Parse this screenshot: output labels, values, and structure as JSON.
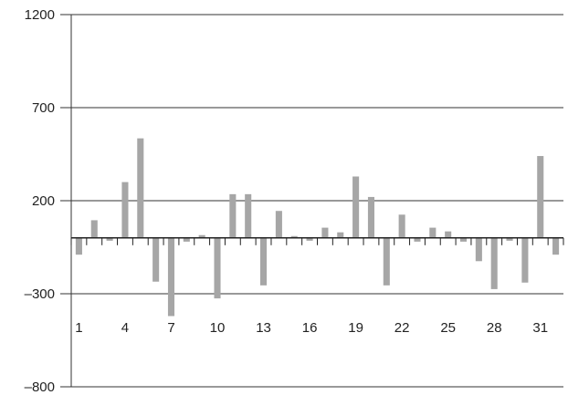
{
  "chart_data": {
    "type": "bar",
    "title": "",
    "xlabel": "",
    "ylabel": "",
    "ylim": [
      -800,
      1200
    ],
    "yticks": [
      1200,
      700,
      200,
      -300,
      -800
    ],
    "ytick_labels": [
      "1200",
      "700",
      "200",
      "–300",
      "–800"
    ],
    "grid": "horizontal",
    "legend": "none",
    "categories": [
      1,
      2,
      3,
      4,
      5,
      6,
      7,
      8,
      9,
      10,
      11,
      12,
      13,
      14,
      15,
      16,
      17,
      18,
      19,
      20,
      21,
      22,
      23,
      24,
      25,
      26,
      27,
      28,
      29,
      30,
      31,
      32
    ],
    "xtick_labels": [
      {
        "category": 1,
        "label": "1"
      },
      {
        "category": 4,
        "label": "4"
      },
      {
        "category": 7,
        "label": "7"
      },
      {
        "category": 10,
        "label": "10"
      },
      {
        "category": 13,
        "label": "13"
      },
      {
        "category": 16,
        "label": "16"
      },
      {
        "category": 19,
        "label": "19"
      },
      {
        "category": 22,
        "label": "22"
      },
      {
        "category": 25,
        "label": "25"
      },
      {
        "category": 28,
        "label": "28"
      },
      {
        "category": 31,
        "label": "31"
      }
    ],
    "series": [
      {
        "color": "#a6a6a6",
        "values": [
          -90,
          95,
          -15,
          300,
          535,
          -235,
          -420,
          -20,
          15,
          -325,
          235,
          235,
          -255,
          145,
          10,
          -15,
          55,
          30,
          330,
          220,
          -255,
          125,
          -20,
          55,
          35,
          -20,
          -125,
          -275,
          -15,
          -240,
          440,
          -90
        ]
      }
    ]
  }
}
